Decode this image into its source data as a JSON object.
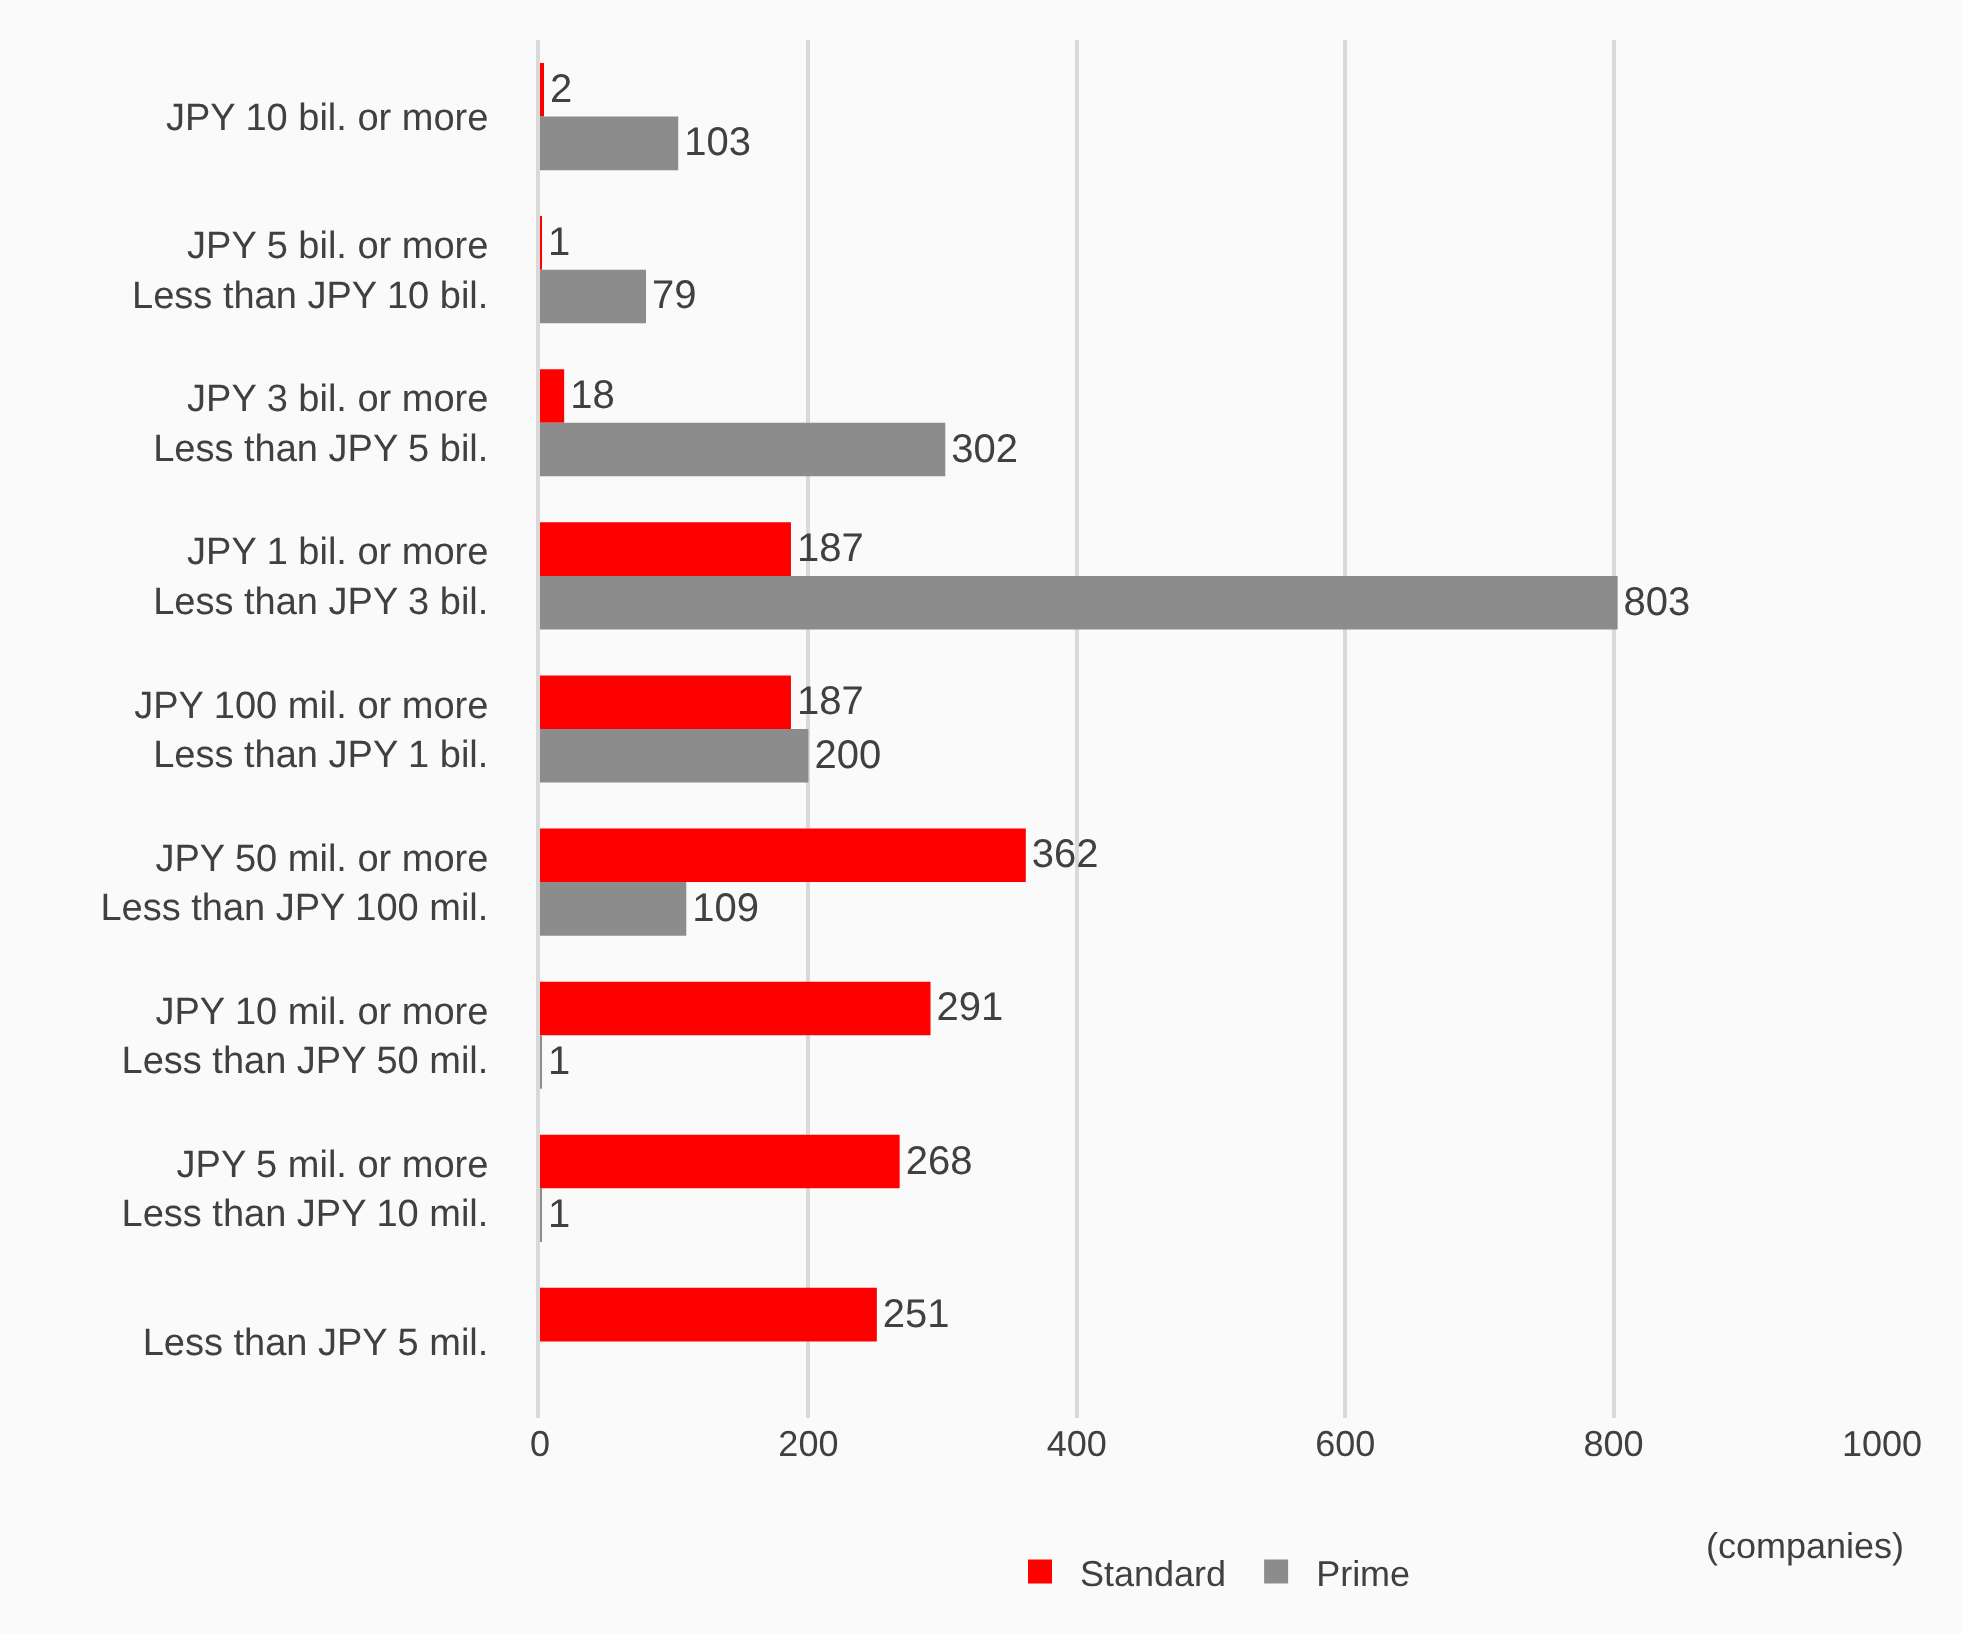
{
  "chart_data": {
    "type": "bar",
    "orientation": "horizontal",
    "xlabel": "(companies)",
    "categories": [
      "JPY 10 bil. or more",
      "JPY 5 bil. or more\nLess than JPY 10 bil.",
      "JPY 3 bil. or more\nLess than JPY 5 bil.",
      "JPY 1 bil. or more\nLess than JPY 3 bil.",
      "JPY 100 mil. or more\nLess than JPY 1 bil.",
      "JPY 50 mil. or more\nLess than JPY 100 mil.",
      "JPY 10 mil. or more\nLess than JPY 50 mil.",
      "JPY 5 mil. or more\nLess than JPY 10 mil.",
      "Less than JPY 5 mil."
    ],
    "series": [
      {
        "name": "Standard",
        "color": "#ff0000",
        "values": [
          2,
          1,
          18,
          187,
          187,
          362,
          291,
          268,
          251
        ]
      },
      {
        "name": "Prime",
        "color": "#8c8c8c",
        "values": [
          103,
          79,
          302,
          803,
          200,
          109,
          1,
          1,
          null
        ]
      }
    ],
    "xlim": [
      0,
      1000
    ],
    "xticks": [
      0,
      200,
      400,
      600,
      800,
      1000
    ],
    "grid": "x",
    "legend": "bottom",
    "data_labels": true
  }
}
